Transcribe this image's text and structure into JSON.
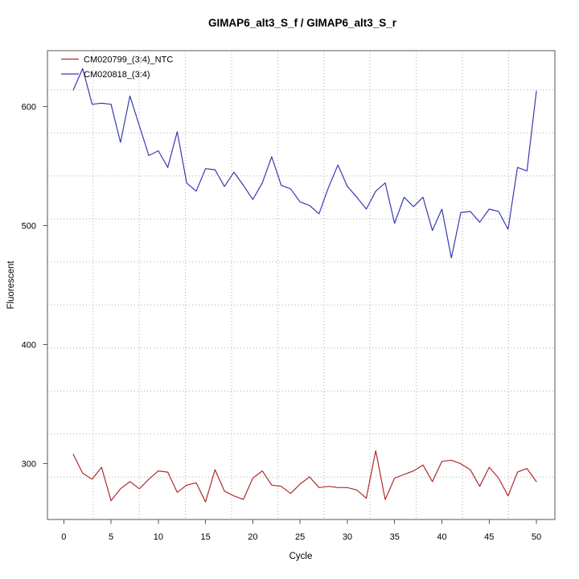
{
  "chart_data": {
    "type": "line",
    "title": "GIMAP6_alt3_S_f / GIMAP6_alt3_S_r",
    "xlabel": "Cycle",
    "ylabel": "Fluorescent",
    "x_ticks": [
      0,
      5,
      10,
      15,
      20,
      25,
      30,
      35,
      40,
      45,
      50
    ],
    "y_ticks": [
      300,
      400,
      500,
      600
    ],
    "xlim": [
      -1.4,
      51.9
    ],
    "ylim": [
      253,
      647
    ],
    "grid": "dotted 10x10 light-gray",
    "legend_position": "top-left",
    "x": [
      1,
      2,
      3,
      4,
      5,
      6,
      7,
      8,
      9,
      10,
      11,
      12,
      13,
      14,
      15,
      16,
      17,
      18,
      19,
      20,
      21,
      22,
      23,
      24,
      25,
      26,
      27,
      28,
      29,
      30,
      31,
      32,
      33,
      34,
      35,
      36,
      37,
      38,
      39,
      40,
      41,
      42,
      43,
      44,
      45,
      46,
      47,
      48,
      49,
      50
    ],
    "series": [
      {
        "name": "CM020799_(3:4)_NTC",
        "color": "#B02B2B",
        "values": [
          308,
          292,
          287,
          297,
          269,
          279,
          285,
          279,
          287,
          294,
          293,
          276,
          282,
          284,
          268,
          295,
          277,
          273,
          270,
          288,
          294,
          282,
          281,
          275,
          283,
          289,
          280,
          281,
          280,
          280,
          278,
          271,
          311,
          270,
          288,
          291,
          294,
          299,
          285,
          302,
          303,
          300,
          295,
          281,
          297,
          288,
          273,
          293,
          296,
          285
        ]
      },
      {
        "name": "CM020818_(3:4)",
        "color": "#3939B0",
        "values": [
          614,
          632,
          602,
          603,
          602,
          570,
          609,
          584,
          559,
          563,
          549,
          579,
          536,
          529,
          548,
          547,
          533,
          545,
          534,
          522,
          536,
          558,
          534,
          531,
          520,
          517,
          510,
          532,
          551,
          533,
          524,
          514,
          529,
          536,
          502,
          524,
          516,
          524,
          496,
          514,
          473,
          511,
          512,
          503,
          514,
          512,
          497,
          549,
          546,
          613
        ]
      }
    ],
    "colors": {
      "grid": "#ABABAB",
      "box": "#555555",
      "text": "#000000",
      "background": "#FFFFFF"
    }
  }
}
